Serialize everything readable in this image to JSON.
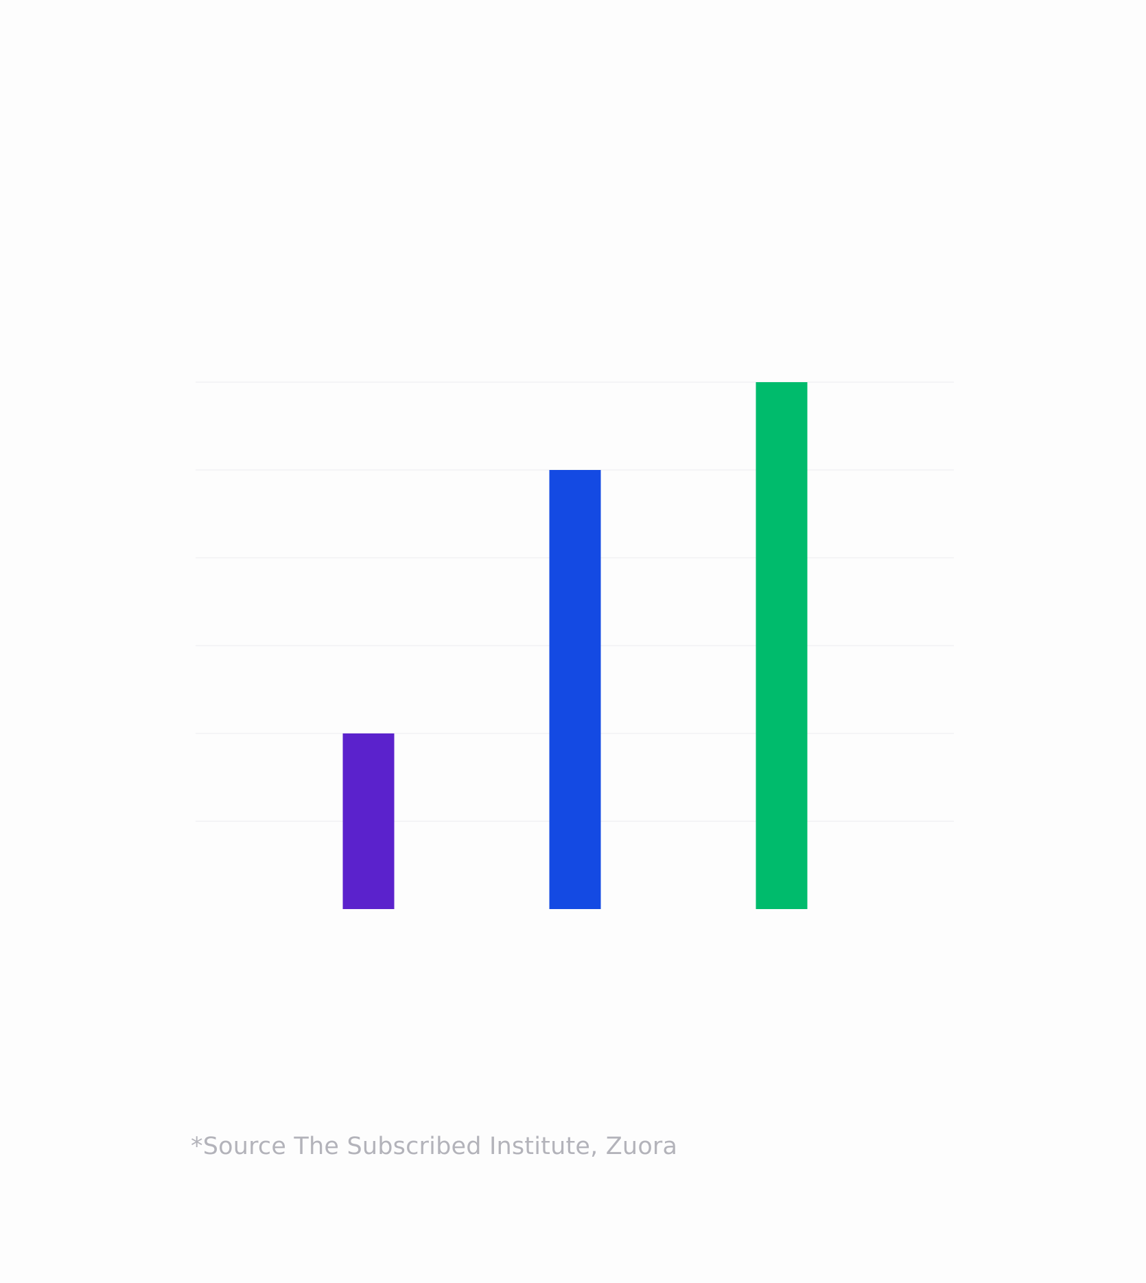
{
  "chart_data": {
    "type": "bar",
    "categories": [
      "",
      "",
      ""
    ],
    "values": [
      2,
      5,
      6
    ],
    "colors": [
      "#5b22cc",
      "#144ae3",
      "#00bb6c"
    ],
    "ylim": [
      0,
      6
    ],
    "grid": true,
    "gridlines": [
      1,
      2,
      3,
      4,
      5,
      6
    ],
    "title": "",
    "xlabel": "",
    "ylabel": ""
  },
  "footnote": "*Source The Subscribed Institute, Zuora"
}
